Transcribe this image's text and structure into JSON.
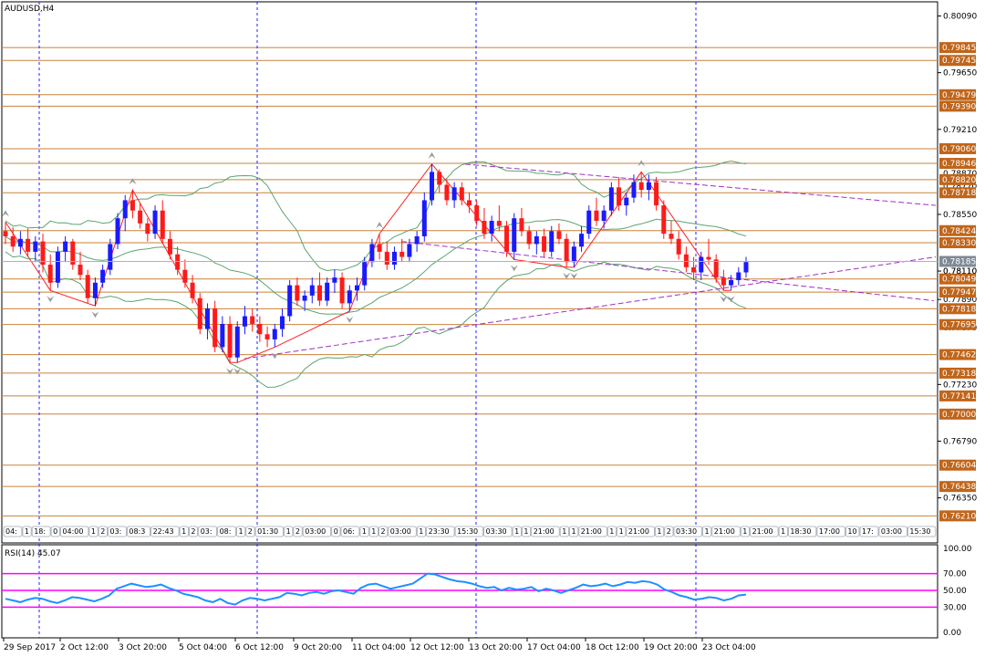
{
  "window": {
    "symbol_label": "AUDUSD,H4"
  },
  "colors": {
    "bull": "#1a1aff",
    "bear": "#ff1a1a",
    "level_line": "#c8823c",
    "level_tag": "#c0651a",
    "current_tag": "#7f8a94",
    "bands": "#5aa56e",
    "trend_line": "#a030c8",
    "zigzag": "#ff2020",
    "session_line": "#2020ff",
    "rsi_line": "#1e90ff",
    "rsi_level": "#ff00ff"
  },
  "chart_data": [
    {
      "type": "candlestick",
      "title": "AUDUSD,H4",
      "ylim": [
        0.76,
        0.802
      ],
      "y_ticks": [
        "0.80090",
        "0.79650",
        "0.79210",
        "0.78550",
        "0.78110",
        "0.77890",
        "0.77230",
        "0.76790",
        "0.76350"
      ],
      "price_levels": [
        "0.79845",
        "0.79745",
        "0.79479",
        "0.79390",
        "0.79060",
        "0.78946",
        "0.78820",
        "0.78718",
        "0.78424",
        "0.78330",
        "0.78049",
        "0.77947",
        "0.77818",
        "0.77695",
        "0.77462",
        "0.77318",
        "0.77141",
        "0.77000",
        "0.76604",
        "0.76438",
        "0.76210"
      ],
      "current_price": "0.78185",
      "overlapped_tick_labels": [
        "0.78870",
        "0.78770",
        "0.77670",
        "0.78110"
      ],
      "x_tick_labels": [
        "29 Sep 2017",
        "2 Oct 12:00",
        "3 Oct 20:00",
        "5 Oct 04:00",
        "6 Oct 12:00",
        "9 Oct 20:00",
        "11 Oct 04:00",
        "12 Oct 12:00",
        "13 Oct 20:00",
        "17 Oct 04:00",
        "18 Oct 12:00",
        "19 Oct 20:00",
        "23 Oct 04:00"
      ],
      "session_strip_labels": [
        "04:",
        "1",
        "18:",
        "0",
        "04:00",
        "1",
        "2",
        "03:",
        "08:3",
        "22:43",
        "1",
        "2",
        "03:",
        "08:",
        "1",
        "2",
        "01:30",
        "1",
        "2",
        "03:00",
        "0",
        "06:",
        "1",
        "1",
        "2",
        "03:00",
        "1",
        "23:30",
        "15:30",
        "03:30",
        "1",
        "1",
        "21:00",
        "1",
        "1",
        "21:00",
        "1",
        "1",
        "21:00",
        "1",
        "2",
        "03:30",
        "1",
        "21:00",
        "1",
        "21:00",
        "1",
        "18:30",
        "17:00",
        "10",
        "17:",
        "03:00",
        "15:30",
        "30"
      ],
      "candles_ohlc": [
        [
          0.7842,
          0.7849,
          0.7832,
          0.7838
        ],
        [
          0.7838,
          0.7845,
          0.7826,
          0.783
        ],
        [
          0.783,
          0.7842,
          0.7824,
          0.7836
        ],
        [
          0.7836,
          0.7844,
          0.7822,
          0.7826
        ],
        [
          0.7826,
          0.7838,
          0.7818,
          0.7834
        ],
        [
          0.7834,
          0.784,
          0.781,
          0.7816
        ],
        [
          0.7816,
          0.7824,
          0.7796,
          0.7802
        ],
        [
          0.7802,
          0.783,
          0.7798,
          0.7826
        ],
        [
          0.7826,
          0.7838,
          0.7818,
          0.7834
        ],
        [
          0.7834,
          0.7836,
          0.7812,
          0.7816
        ],
        [
          0.7816,
          0.7826,
          0.7804,
          0.7808
        ],
        [
          0.7808,
          0.7812,
          0.7786,
          0.779
        ],
        [
          0.779,
          0.7806,
          0.7784,
          0.7802
        ],
        [
          0.7802,
          0.7816,
          0.7798,
          0.7812
        ],
        [
          0.7812,
          0.7836,
          0.7808,
          0.7832
        ],
        [
          0.7832,
          0.7856,
          0.7828,
          0.7852
        ],
        [
          0.7852,
          0.787,
          0.7842,
          0.7866
        ],
        [
          0.7866,
          0.7874,
          0.7852,
          0.7858
        ],
        [
          0.7858,
          0.7864,
          0.7844,
          0.7848
        ],
        [
          0.7848,
          0.7852,
          0.7834,
          0.784
        ],
        [
          0.784,
          0.7862,
          0.7836,
          0.7858
        ],
        [
          0.7858,
          0.7866,
          0.7832,
          0.7836
        ],
        [
          0.7836,
          0.7842,
          0.782,
          0.7824
        ],
        [
          0.7824,
          0.783,
          0.7808,
          0.7812
        ],
        [
          0.7812,
          0.782,
          0.7798,
          0.7802
        ],
        [
          0.7802,
          0.7808,
          0.7786,
          0.779
        ],
        [
          0.779,
          0.7794,
          0.7762,
          0.7766
        ],
        [
          0.7766,
          0.7786,
          0.7758,
          0.7782
        ],
        [
          0.7782,
          0.7788,
          0.7748,
          0.7752
        ],
        [
          0.7752,
          0.7776,
          0.7748,
          0.777
        ],
        [
          0.777,
          0.7776,
          0.774,
          0.7744
        ],
        [
          0.7744,
          0.7772,
          0.774,
          0.7768
        ],
        [
          0.7768,
          0.7784,
          0.7762,
          0.7776
        ],
        [
          0.7776,
          0.7782,
          0.7764,
          0.777
        ],
        [
          0.777,
          0.7776,
          0.7756,
          0.7762
        ],
        [
          0.7762,
          0.7768,
          0.7752,
          0.7758
        ],
        [
          0.7758,
          0.777,
          0.7752,
          0.7766
        ],
        [
          0.7766,
          0.7782,
          0.776,
          0.7776
        ],
        [
          0.7776,
          0.7804,
          0.7772,
          0.78
        ],
        [
          0.78,
          0.7806,
          0.7784,
          0.7788
        ],
        [
          0.7788,
          0.7796,
          0.778,
          0.7792
        ],
        [
          0.7792,
          0.7806,
          0.7786,
          0.78
        ],
        [
          0.78,
          0.781,
          0.7784,
          0.7788
        ],
        [
          0.7788,
          0.7806,
          0.7784,
          0.7802
        ],
        [
          0.7802,
          0.7812,
          0.7794,
          0.7806
        ],
        [
          0.7806,
          0.781,
          0.7782,
          0.7786
        ],
        [
          0.7786,
          0.78,
          0.778,
          0.7796
        ],
        [
          0.7796,
          0.7806,
          0.7788,
          0.78
        ],
        [
          0.78,
          0.7822,
          0.7796,
          0.7818
        ],
        [
          0.7818,
          0.7836,
          0.7814,
          0.7832
        ],
        [
          0.7832,
          0.784,
          0.782,
          0.7826
        ],
        [
          0.7826,
          0.7834,
          0.7812,
          0.7816
        ],
        [
          0.7816,
          0.783,
          0.7812,
          0.7826
        ],
        [
          0.7826,
          0.7836,
          0.7818,
          0.7822
        ],
        [
          0.7822,
          0.7836,
          0.7818,
          0.7832
        ],
        [
          0.7832,
          0.7842,
          0.7826,
          0.7838
        ],
        [
          0.7838,
          0.7872,
          0.7834,
          0.7866
        ],
        [
          0.7866,
          0.7894,
          0.7862,
          0.7888
        ],
        [
          0.7888,
          0.789,
          0.7872,
          0.7878
        ],
        [
          0.7878,
          0.7882,
          0.7862,
          0.7866
        ],
        [
          0.7866,
          0.788,
          0.786,
          0.7876
        ],
        [
          0.7876,
          0.788,
          0.7862,
          0.7866
        ],
        [
          0.7866,
          0.7872,
          0.7856,
          0.7862
        ],
        [
          0.7862,
          0.7866,
          0.7846,
          0.785
        ],
        [
          0.785,
          0.786,
          0.7836,
          0.784
        ],
        [
          0.784,
          0.7854,
          0.7834,
          0.785
        ],
        [
          0.785,
          0.7862,
          0.7842,
          0.7846
        ],
        [
          0.7846,
          0.785,
          0.7822,
          0.7826
        ],
        [
          0.7826,
          0.7856,
          0.782,
          0.7852
        ],
        [
          0.7852,
          0.786,
          0.7838,
          0.7842
        ],
        [
          0.7842,
          0.7846,
          0.7828,
          0.7832
        ],
        [
          0.7832,
          0.7842,
          0.7824,
          0.7838
        ],
        [
          0.7838,
          0.7844,
          0.7822,
          0.7826
        ],
        [
          0.7826,
          0.7846,
          0.7822,
          0.7842
        ],
        [
          0.7842,
          0.7848,
          0.7832,
          0.7836
        ],
        [
          0.7836,
          0.784,
          0.7814,
          0.7818
        ],
        [
          0.7818,
          0.7834,
          0.7814,
          0.783
        ],
        [
          0.783,
          0.7846,
          0.7826,
          0.784
        ],
        [
          0.784,
          0.7862,
          0.7836,
          0.7858
        ],
        [
          0.7858,
          0.7868,
          0.7846,
          0.785
        ],
        [
          0.785,
          0.7862,
          0.7844,
          0.7858
        ],
        [
          0.7858,
          0.788,
          0.7854,
          0.7876
        ],
        [
          0.7876,
          0.7884,
          0.7858,
          0.7862
        ],
        [
          0.7862,
          0.7872,
          0.7854,
          0.7868
        ],
        [
          0.7868,
          0.7886,
          0.7864,
          0.788
        ],
        [
          0.788,
          0.7888,
          0.7868,
          0.7874
        ],
        [
          0.7874,
          0.7886,
          0.7866,
          0.788
        ],
        [
          0.788,
          0.7884,
          0.7858,
          0.7862
        ],
        [
          0.7862,
          0.7866,
          0.7836,
          0.784
        ],
        [
          0.784,
          0.785,
          0.7832,
          0.7836
        ],
        [
          0.7836,
          0.7842,
          0.782,
          0.7824
        ],
        [
          0.7824,
          0.783,
          0.781,
          0.7814
        ],
        [
          0.7814,
          0.7822,
          0.7804,
          0.781
        ],
        [
          0.781,
          0.7826,
          0.7804,
          0.7822
        ],
        [
          0.7822,
          0.7836,
          0.7816,
          0.782
        ],
        [
          0.782,
          0.7824,
          0.7802,
          0.7806
        ],
        [
          0.7806,
          0.7812,
          0.7796,
          0.78
        ],
        [
          0.78,
          0.7808,
          0.7796,
          0.7804
        ],
        [
          0.7804,
          0.7814,
          0.78,
          0.781
        ],
        [
          0.781,
          0.7822,
          0.7806,
          0.7818
        ]
      ]
    },
    {
      "type": "line",
      "title": "RSI(14) 45.07",
      "ylim": [
        0,
        100
      ],
      "y_ticks": [
        "100.00",
        "70.00",
        "50.00",
        "30.00",
        "0.00"
      ],
      "levels": [
        70,
        50,
        30
      ],
      "values": [
        40,
        38,
        36,
        39,
        41,
        40,
        37,
        35,
        38,
        42,
        41,
        39,
        37,
        40,
        44,
        52,
        55,
        58,
        56,
        54,
        55,
        57,
        53,
        50,
        46,
        44,
        42,
        38,
        36,
        40,
        35,
        33,
        38,
        41,
        40,
        38,
        40,
        42,
        47,
        46,
        44,
        47,
        48,
        46,
        49,
        50,
        48,
        46,
        53,
        57,
        58,
        55,
        52,
        54,
        56,
        58,
        64,
        70,
        69,
        66,
        63,
        61,
        60,
        58,
        55,
        53,
        54,
        50,
        53,
        51,
        52,
        54,
        49,
        52,
        50,
        47,
        50,
        53,
        57,
        55,
        56,
        58,
        55,
        57,
        60,
        59,
        61,
        60,
        57,
        51,
        48,
        44,
        42,
        39,
        40,
        42,
        41,
        38,
        40,
        44,
        45
      ]
    }
  ]
}
